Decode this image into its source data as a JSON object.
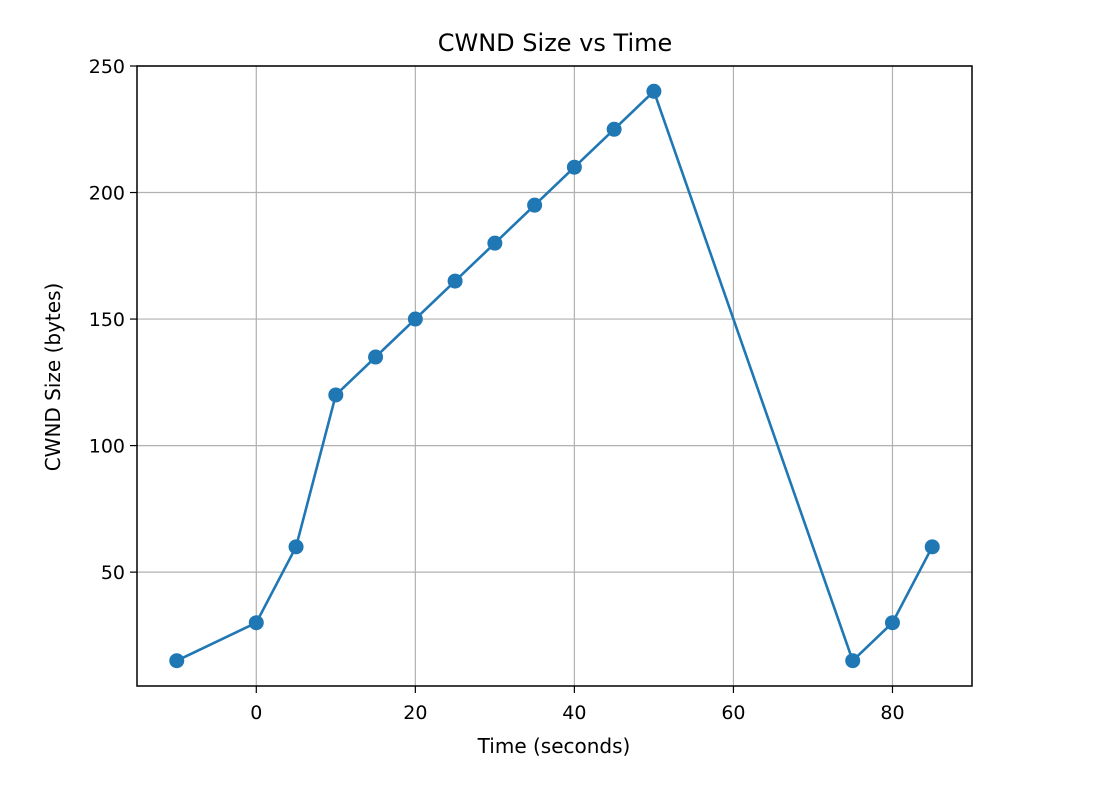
{
  "chart_data": {
    "type": "line",
    "title": "CWND Size vs Time",
    "xlabel": "Time (seconds)",
    "ylabel": "CWND Size (bytes)",
    "xlim": [
      -15,
      90
    ],
    "ylim": [
      5,
      250
    ],
    "x_ticks": [
      0,
      20,
      40,
      60,
      80
    ],
    "y_ticks": [
      50,
      100,
      150,
      200,
      250
    ],
    "grid": true,
    "series": [
      {
        "color": "#1f77b4",
        "marker": "circle",
        "x": [
          -10,
          0,
          5,
          10,
          15,
          20,
          25,
          30,
          35,
          40,
          45,
          50,
          75,
          80,
          85
        ],
        "y": [
          15,
          30,
          60,
          120,
          135,
          150,
          165,
          180,
          195,
          210,
          225,
          240,
          15,
          30,
          60
        ]
      }
    ]
  }
}
